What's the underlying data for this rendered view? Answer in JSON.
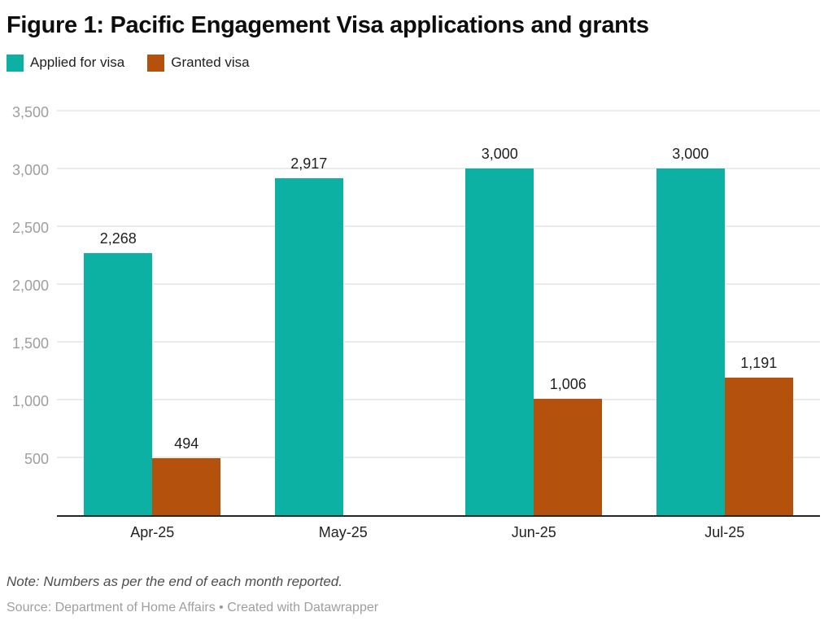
{
  "title": "Figure 1: Pacific Engagement Visa applications and grants",
  "legend": {
    "items": [
      {
        "label": "Applied for visa",
        "color": "#0db1a3"
      },
      {
        "label": "Granted visa",
        "color": "#b4520d"
      }
    ]
  },
  "chart_data": {
    "type": "bar",
    "title": "Figure 1: Pacific Engagement Visa applications and grants",
    "categories": [
      "Apr-25",
      "May-25",
      "Jun-25",
      "Jul-25"
    ],
    "series": [
      {
        "name": "Applied for visa",
        "color": "#0db1a3",
        "values": [
          2268,
          2917,
          3000,
          3000
        ]
      },
      {
        "name": "Granted visa",
        "color": "#b4520d",
        "values": [
          494,
          null,
          1006,
          1191
        ]
      }
    ],
    "xlabel": "",
    "ylabel": "",
    "ylim": [
      0,
      3500
    ],
    "yticks": [
      500,
      1000,
      1500,
      2000,
      2500,
      3000,
      3500
    ],
    "ytick_labels": [
      "500",
      "1,000",
      "1,500",
      "2,000",
      "2,500",
      "3,000",
      "3,500"
    ],
    "grid": true,
    "legend_position": "top-left",
    "value_labels_shown": true
  },
  "footer": {
    "note": "Note: Numbers as per the end of each month reported.",
    "source": "Source: Department of Home Affairs • Created with Datawrapper"
  }
}
